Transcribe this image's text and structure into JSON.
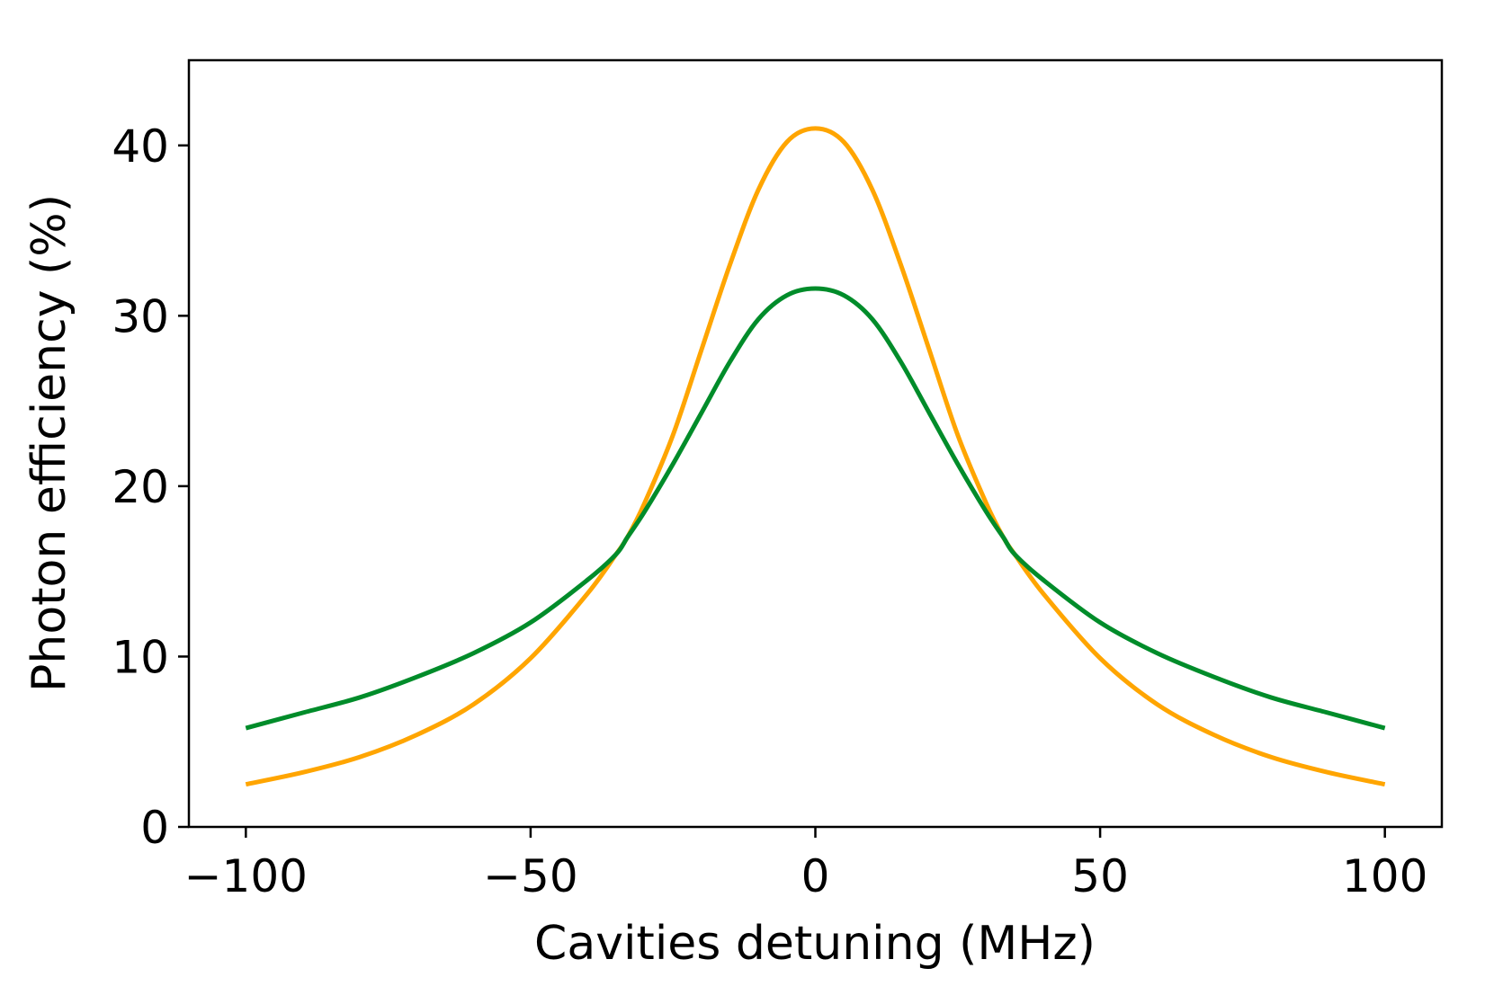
{
  "chart_data": {
    "type": "line",
    "title": "",
    "xlabel": "Cavities detuning (MHz)",
    "ylabel": "Photon efficiency (%)",
    "xlim": [
      -110,
      110
    ],
    "ylim": [
      0,
      45
    ],
    "xticks": [
      -100,
      -50,
      0,
      50,
      100
    ],
    "xtick_labels": [
      "−100",
      "−50",
      "0",
      "50",
      "100"
    ],
    "yticks": [
      0,
      10,
      20,
      30,
      40
    ],
    "ytick_labels": [
      "0",
      "10",
      "20",
      "30",
      "40"
    ],
    "grid": false,
    "legend": "none",
    "x": [
      -100,
      -90,
      -80,
      -70,
      -60,
      -50,
      -40,
      -35,
      -33,
      -30,
      -25,
      -20,
      -15,
      -10,
      -5,
      0,
      5,
      10,
      15,
      20,
      25,
      30,
      33,
      35,
      40,
      50,
      60,
      70,
      80,
      90,
      100
    ],
    "series": [
      {
        "color": "#FFA500",
        "values": [
          2.5,
          3.2,
          4.1,
          5.4,
          7.2,
          9.9,
          13.7,
          16.0,
          17.0,
          19.0,
          23.0,
          28.0,
          33.0,
          37.4,
          40.2,
          41.0,
          40.2,
          37.4,
          33.0,
          28.0,
          23.0,
          19.0,
          17.0,
          16.0,
          13.7,
          9.9,
          7.2,
          5.4,
          4.1,
          3.2,
          2.5
        ]
      },
      {
        "color": "#008C2A",
        "values": [
          5.8,
          6.7,
          7.6,
          8.8,
          10.2,
          12.0,
          14.5,
          16.0,
          17.0,
          18.5,
          21.3,
          24.3,
          27.3,
          29.8,
          31.2,
          31.6,
          31.2,
          29.8,
          27.3,
          24.3,
          21.3,
          18.5,
          17.0,
          16.0,
          14.5,
          12.0,
          10.2,
          8.8,
          7.6,
          6.7,
          5.8
        ]
      }
    ]
  }
}
